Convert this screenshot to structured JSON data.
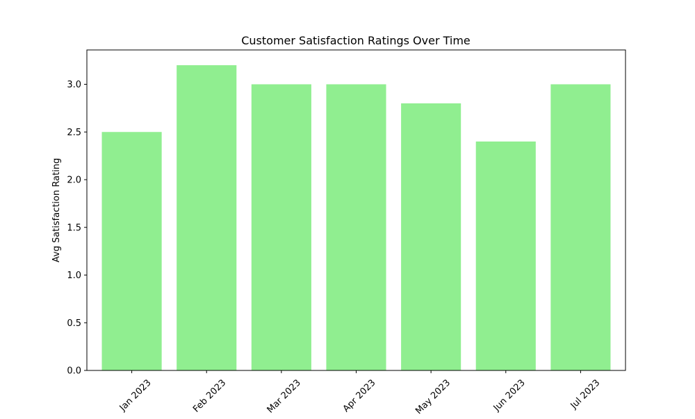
{
  "chart_data": {
    "type": "bar",
    "title": "Customer Satisfaction Ratings Over Time",
    "xlabel": "",
    "ylabel": "Avg Satisfaction Rating",
    "categories": [
      "Jan 2023",
      "Feb 2023",
      "Mar 2023",
      "Apr 2023",
      "May 2023",
      "Jun 2023",
      "Jul 2023"
    ],
    "values": [
      2.5,
      3.2,
      3.0,
      3.0,
      2.8,
      2.4,
      3.0
    ],
    "ylim": [
      0,
      3.36
    ],
    "yticks": [
      "0.0",
      "0.5",
      "1.0",
      "1.5",
      "2.0",
      "2.5",
      "3.0"
    ],
    "grid": false,
    "legend": "none",
    "bar_color": "#90ee90"
  }
}
